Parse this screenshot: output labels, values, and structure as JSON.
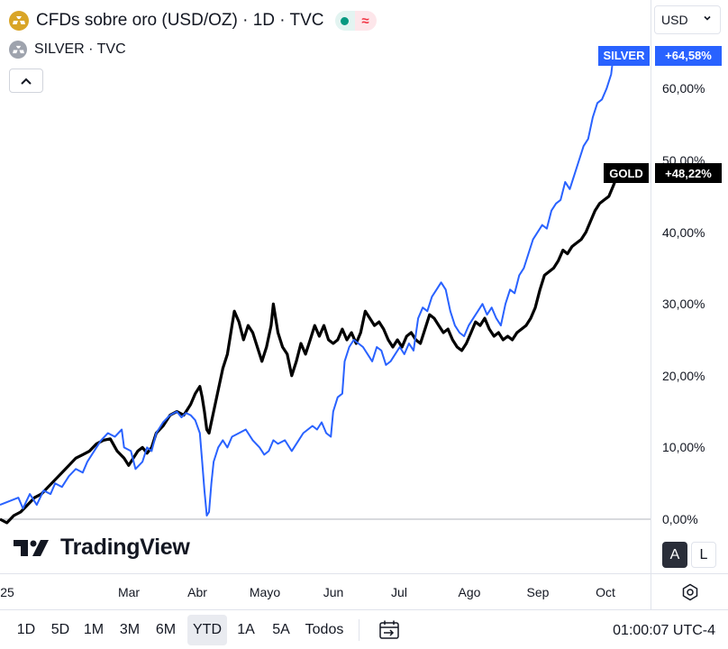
{
  "header": {
    "main_symbol_title": "CFDs sobre oro (USD/OZ) · 1D · TVC",
    "compare_symbol_title": "SILVER · TVC",
    "currency": "USD"
  },
  "watermark": {
    "text": "TradingView"
  },
  "price_scale": {
    "mode_auto": "A",
    "mode_log": "L"
  },
  "bottom_bar": {
    "ranges": [
      "1D",
      "5D",
      "1M",
      "3M",
      "6M",
      "YTD",
      "1A",
      "5A",
      "Todos"
    ],
    "active_range": "YTD",
    "clock": "01:00:07 UTC-4"
  },
  "colors": {
    "silver": "#2962ff",
    "gold": "#000000",
    "gold_icon": "#d9a527"
  },
  "icons": [
    "gold-coin-icon",
    "silver-coin-icon",
    "chevron-up-icon",
    "chevron-down-icon",
    "gear-icon",
    "calendar-arrow-icon"
  ],
  "chart_data": {
    "type": "line",
    "x_tick_labels": [
      "25",
      "Mar",
      "Abr",
      "Mayo",
      "Jun",
      "Jul",
      "Ago",
      "Sep",
      "Oct"
    ],
    "y_ticks": [
      0,
      10,
      20,
      30,
      40,
      50,
      60
    ],
    "y_tick_labels": [
      "0,00%",
      "10,00%",
      "20,00%",
      "30,00%",
      "40,00%",
      "50,00%",
      "60,00%"
    ],
    "ylim": [
      -7,
      73
    ],
    "x_days": [
      0,
      283
    ],
    "series": [
      {
        "name": "SILVER",
        "color": "#2962ff",
        "last_label": "+64,58%",
        "points": [
          [
            0,
            2
          ],
          [
            4,
            2.5
          ],
          [
            8,
            3
          ],
          [
            10,
            1.5
          ],
          [
            13,
            3.5
          ],
          [
            16,
            2
          ],
          [
            19,
            4
          ],
          [
            22,
            3.5
          ],
          [
            24,
            5
          ],
          [
            27,
            4.5
          ],
          [
            30,
            6
          ],
          [
            33,
            7
          ],
          [
            36,
            6.5
          ],
          [
            38,
            8
          ],
          [
            41,
            9.5
          ],
          [
            44,
            11
          ],
          [
            47,
            12
          ],
          [
            50,
            11.5
          ],
          [
            53,
            12.5
          ],
          [
            54,
            10
          ],
          [
            57,
            9.5
          ],
          [
            59,
            7
          ],
          [
            62,
            8
          ],
          [
            64,
            10
          ],
          [
            66,
            9.5
          ],
          [
            68,
            12
          ],
          [
            71,
            13.5
          ],
          [
            74,
            14.5
          ],
          [
            77,
            15
          ],
          [
            79,
            14.2
          ],
          [
            81,
            14.8
          ],
          [
            83,
            14.5
          ],
          [
            85,
            13.8
          ],
          [
            87,
            12
          ],
          [
            88,
            8
          ],
          [
            89,
            4
          ],
          [
            90,
            0.5
          ],
          [
            91,
            1
          ],
          [
            92,
            5
          ],
          [
            93,
            8
          ],
          [
            95,
            10
          ],
          [
            97,
            11
          ],
          [
            99,
            10
          ],
          [
            101,
            11.5
          ],
          [
            104,
            12
          ],
          [
            107,
            12.5
          ],
          [
            110,
            11
          ],
          [
            113,
            10
          ],
          [
            115,
            9
          ],
          [
            117,
            9.5
          ],
          [
            119,
            11
          ],
          [
            121,
            10.5
          ],
          [
            124,
            11
          ],
          [
            127,
            9.5
          ],
          [
            130,
            11
          ],
          [
            132,
            12
          ],
          [
            134,
            12.5
          ],
          [
            136,
            13
          ],
          [
            138,
            12.5
          ],
          [
            140,
            13.5
          ],
          [
            142,
            12
          ],
          [
            144,
            11.5
          ],
          [
            145,
            15
          ],
          [
            147,
            17
          ],
          [
            149,
            17.5
          ],
          [
            150,
            22
          ],
          [
            152,
            24
          ],
          [
            154,
            25
          ],
          [
            156,
            24.5
          ],
          [
            158,
            24
          ],
          [
            160,
            23
          ],
          [
            162,
            22
          ],
          [
            164,
            24
          ],
          [
            166,
            23.5
          ],
          [
            168,
            21.5
          ],
          [
            170,
            22
          ],
          [
            172,
            23
          ],
          [
            174,
            24
          ],
          [
            176,
            23
          ],
          [
            178,
            24.5
          ],
          [
            180,
            23.5
          ],
          [
            182,
            28
          ],
          [
            184,
            29.5
          ],
          [
            186,
            29
          ],
          [
            188,
            31
          ],
          [
            190,
            32
          ],
          [
            192,
            33
          ],
          [
            194,
            32
          ],
          [
            196,
            29
          ],
          [
            198,
            27
          ],
          [
            200,
            26
          ],
          [
            202,
            25.5
          ],
          [
            204,
            27
          ],
          [
            206,
            28
          ],
          [
            208,
            29
          ],
          [
            210,
            30
          ],
          [
            212,
            28.5
          ],
          [
            214,
            29.5
          ],
          [
            216,
            28
          ],
          [
            218,
            27
          ],
          [
            220,
            30
          ],
          [
            222,
            32
          ],
          [
            224,
            31.5
          ],
          [
            226,
            34
          ],
          [
            228,
            35
          ],
          [
            230,
            37
          ],
          [
            232,
            39
          ],
          [
            234,
            40
          ],
          [
            236,
            41
          ],
          [
            238,
            40.5
          ],
          [
            240,
            43
          ],
          [
            242,
            44
          ],
          [
            244,
            44.5
          ],
          [
            246,
            47
          ],
          [
            248,
            46
          ],
          [
            250,
            48
          ],
          [
            252,
            50
          ],
          [
            254,
            52
          ],
          [
            256,
            53
          ],
          [
            258,
            56
          ],
          [
            260,
            58
          ],
          [
            262,
            58.5
          ],
          [
            264,
            60
          ],
          [
            266,
            62
          ],
          [
            267,
            64.58
          ]
        ]
      },
      {
        "name": "GOLD",
        "color": "#000000",
        "last_label": "+48,22%",
        "points": [
          [
            0,
            0
          ],
          [
            3,
            -0.5
          ],
          [
            6,
            0.5
          ],
          [
            9,
            1
          ],
          [
            12,
            2
          ],
          [
            15,
            3
          ],
          [
            18,
            3.5
          ],
          [
            21,
            4.5
          ],
          [
            24,
            5.5
          ],
          [
            27,
            6.5
          ],
          [
            30,
            7.5
          ],
          [
            33,
            8.5
          ],
          [
            36,
            9
          ],
          [
            39,
            9.5
          ],
          [
            42,
            10.5
          ],
          [
            45,
            11
          ],
          [
            48,
            11.2
          ],
          [
            51,
            9.5
          ],
          [
            54,
            8.5
          ],
          [
            56,
            7.5
          ],
          [
            58,
            8.5
          ],
          [
            60,
            9.5
          ],
          [
            62,
            10
          ],
          [
            64,
            9.2
          ],
          [
            66,
            10
          ],
          [
            68,
            12
          ],
          [
            71,
            13
          ],
          [
            74,
            14.5
          ],
          [
            77,
            15
          ],
          [
            80,
            14.5
          ],
          [
            83,
            16
          ],
          [
            85,
            17.5
          ],
          [
            87,
            18.5
          ],
          [
            88,
            17
          ],
          [
            89,
            15
          ],
          [
            90,
            12.5
          ],
          [
            91,
            12
          ],
          [
            93,
            15
          ],
          [
            95,
            18
          ],
          [
            97,
            21
          ],
          [
            99,
            23
          ],
          [
            101,
            27
          ],
          [
            102,
            29
          ],
          [
            104,
            27.5
          ],
          [
            106,
            25
          ],
          [
            108,
            27
          ],
          [
            110,
            26
          ],
          [
            112,
            24
          ],
          [
            114,
            22
          ],
          [
            116,
            24
          ],
          [
            118,
            27
          ],
          [
            119,
            30
          ],
          [
            121,
            26
          ],
          [
            123,
            24
          ],
          [
            125,
            23
          ],
          [
            127,
            20
          ],
          [
            129,
            22
          ],
          [
            131,
            24.5
          ],
          [
            133,
            23
          ],
          [
            135,
            25
          ],
          [
            137,
            27
          ],
          [
            139,
            25.5
          ],
          [
            141,
            27
          ],
          [
            143,
            25
          ],
          [
            145,
            24.5
          ],
          [
            147,
            25
          ],
          [
            149,
            26.5
          ],
          [
            151,
            25
          ],
          [
            153,
            26
          ],
          [
            155,
            24.5
          ],
          [
            157,
            26
          ],
          [
            159,
            29
          ],
          [
            161,
            28
          ],
          [
            163,
            27
          ],
          [
            165,
            27.5
          ],
          [
            167,
            26.5
          ],
          [
            169,
            25
          ],
          [
            171,
            24
          ],
          [
            173,
            25
          ],
          [
            175,
            24
          ],
          [
            177,
            25.5
          ],
          [
            179,
            26
          ],
          [
            181,
            25
          ],
          [
            183,
            24.5
          ],
          [
            185,
            26.5
          ],
          [
            187,
            28.5
          ],
          [
            189,
            28
          ],
          [
            191,
            27
          ],
          [
            193,
            26
          ],
          [
            195,
            26.5
          ],
          [
            197,
            25
          ],
          [
            199,
            24
          ],
          [
            201,
            23.5
          ],
          [
            203,
            24.5
          ],
          [
            205,
            26
          ],
          [
            207,
            27.5
          ],
          [
            209,
            27
          ],
          [
            211,
            28
          ],
          [
            213,
            26.5
          ],
          [
            215,
            25.5
          ],
          [
            217,
            26
          ],
          [
            219,
            25
          ],
          [
            221,
            25.5
          ],
          [
            223,
            25
          ],
          [
            225,
            26
          ],
          [
            227,
            26.5
          ],
          [
            229,
            27
          ],
          [
            231,
            28
          ],
          [
            233,
            29.5
          ],
          [
            235,
            32
          ],
          [
            237,
            34
          ],
          [
            239,
            34.5
          ],
          [
            241,
            35
          ],
          [
            243,
            36
          ],
          [
            245,
            37.5
          ],
          [
            247,
            37
          ],
          [
            249,
            38
          ],
          [
            251,
            38.5
          ],
          [
            253,
            39
          ],
          [
            255,
            40
          ],
          [
            257,
            41.5
          ],
          [
            259,
            43
          ],
          [
            261,
            44
          ],
          [
            263,
            44.5
          ],
          [
            265,
            45
          ],
          [
            267,
            46.5
          ],
          [
            269,
            48.22
          ]
        ]
      }
    ]
  }
}
